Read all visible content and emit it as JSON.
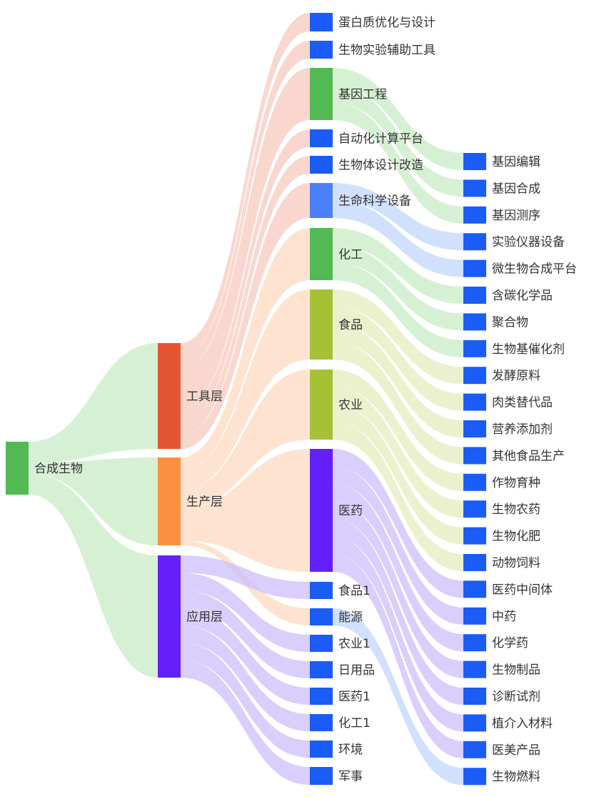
{
  "diagram_type": "sankey",
  "colors": {
    "blue": "#1a5cf5",
    "light_blue": "#4a80f8",
    "red": "#e35531",
    "orange": "#fb9140",
    "purple": "#6420fa",
    "green": "#52b954",
    "olive": "#a6c136",
    "link_green": "#c8ebc6",
    "link_red": "#f7c9bf",
    "link_orange": "#fdd9c0",
    "link_purple": "#cebefc",
    "link_blue": "#c2d5fb",
    "link_olive": "#e4ecbc"
  },
  "nodes": [
    {
      "id": "root",
      "label": "合成生物",
      "color": "green"
    },
    {
      "id": "tool",
      "label": "工具层",
      "color": "red"
    },
    {
      "id": "prod",
      "label": "生产层",
      "color": "orange"
    },
    {
      "id": "app",
      "label": "应用层",
      "color": "purple"
    },
    {
      "id": "t1",
      "label": "蛋白质优化与设计",
      "color": "blue"
    },
    {
      "id": "t2",
      "label": "生物实验辅助工具",
      "color": "blue"
    },
    {
      "id": "t3",
      "label": "基因工程",
      "color": "green"
    },
    {
      "id": "t4",
      "label": "自动化计算平台",
      "color": "blue"
    },
    {
      "id": "t5",
      "label": "生物体设计改造",
      "color": "blue"
    },
    {
      "id": "t6",
      "label": "生命科学设备",
      "color": "light_blue"
    },
    {
      "id": "p1",
      "label": "化工",
      "color": "green"
    },
    {
      "id": "p2",
      "label": "食品",
      "color": "olive"
    },
    {
      "id": "p3",
      "label": "农业",
      "color": "olive"
    },
    {
      "id": "p4",
      "label": "医药",
      "color": "purple"
    },
    {
      "id": "a1",
      "label": "食品1",
      "color": "blue"
    },
    {
      "id": "a2",
      "label": "能源",
      "color": "blue"
    },
    {
      "id": "a3",
      "label": "农业1",
      "color": "blue"
    },
    {
      "id": "a4",
      "label": "日用品",
      "color": "blue"
    },
    {
      "id": "a5",
      "label": "医药1",
      "color": "blue"
    },
    {
      "id": "a6",
      "label": "化工1",
      "color": "blue"
    },
    {
      "id": "a7",
      "label": "环境",
      "color": "blue"
    },
    {
      "id": "a8",
      "label": "军事",
      "color": "blue"
    },
    {
      "id": "l1",
      "label": "基因编辑",
      "color": "blue"
    },
    {
      "id": "l2",
      "label": "基因合成",
      "color": "blue"
    },
    {
      "id": "l3",
      "label": "基因测序",
      "color": "blue"
    },
    {
      "id": "l4",
      "label": "实验仪器设备",
      "color": "blue"
    },
    {
      "id": "l5",
      "label": "微生物合成平台",
      "color": "blue"
    },
    {
      "id": "l6",
      "label": "含碳化学品",
      "color": "blue"
    },
    {
      "id": "l7",
      "label": "聚合物",
      "color": "blue"
    },
    {
      "id": "l8",
      "label": "生物基催化剂",
      "color": "blue"
    },
    {
      "id": "l9",
      "label": "发酵原料",
      "color": "blue"
    },
    {
      "id": "l10",
      "label": "肉类替代品",
      "color": "blue"
    },
    {
      "id": "l11",
      "label": "营养添加剂",
      "color": "blue"
    },
    {
      "id": "l12",
      "label": "其他食品生产",
      "color": "blue"
    },
    {
      "id": "l13",
      "label": "作物育种",
      "color": "blue"
    },
    {
      "id": "l14",
      "label": "生物农药",
      "color": "blue"
    },
    {
      "id": "l15",
      "label": "生物化肥",
      "color": "blue"
    },
    {
      "id": "l16",
      "label": "动物饲料",
      "color": "blue"
    },
    {
      "id": "l17",
      "label": "医药中间体",
      "color": "blue"
    },
    {
      "id": "l18",
      "label": "中药",
      "color": "blue"
    },
    {
      "id": "l19",
      "label": "化学药",
      "color": "blue"
    },
    {
      "id": "l20",
      "label": "生物制品",
      "color": "blue"
    },
    {
      "id": "l21",
      "label": "诊断试剂",
      "color": "blue"
    },
    {
      "id": "l22",
      "label": "植介入材料",
      "color": "blue"
    },
    {
      "id": "l23",
      "label": "医美产品",
      "color": "blue"
    },
    {
      "id": "l24",
      "label": "生物燃料",
      "color": "blue"
    }
  ],
  "links": [
    {
      "source": "root",
      "target": "tool",
      "value": 8,
      "color": "link_green"
    },
    {
      "source": "root",
      "target": "prod",
      "value": 4,
      "color": "link_green"
    },
    {
      "source": "root",
      "target": "app",
      "value": 8,
      "color": "link_green"
    },
    {
      "source": "tool",
      "target": "t1",
      "value": 1,
      "color": "link_red"
    },
    {
      "source": "tool",
      "target": "t2",
      "value": 1,
      "color": "link_red"
    },
    {
      "source": "tool",
      "target": "t3",
      "value": 3,
      "color": "link_red"
    },
    {
      "source": "tool",
      "target": "t4",
      "value": 1,
      "color": "link_red"
    },
    {
      "source": "tool",
      "target": "t5",
      "value": 1,
      "color": "link_red"
    },
    {
      "source": "tool",
      "target": "t6",
      "value": 1,
      "color": "link_red"
    },
    {
      "source": "prod",
      "target": "p1",
      "value": 3,
      "color": "link_orange"
    },
    {
      "source": "prod",
      "target": "p2",
      "value": 4,
      "color": "link_orange"
    },
    {
      "source": "prod",
      "target": "p3",
      "value": 4,
      "color": "link_orange"
    },
    {
      "source": "prod",
      "target": "p4",
      "value": 7,
      "color": "link_orange"
    },
    {
      "source": "prod",
      "target": "a2",
      "value": 1,
      "color": "link_orange"
    },
    {
      "source": "app",
      "target": "a1",
      "value": 1,
      "color": "link_purple"
    },
    {
      "source": "app",
      "target": "a3",
      "value": 1,
      "color": "link_purple"
    },
    {
      "source": "app",
      "target": "a4",
      "value": 1,
      "color": "link_purple"
    },
    {
      "source": "app",
      "target": "a5",
      "value": 1,
      "color": "link_purple"
    },
    {
      "source": "app",
      "target": "a6",
      "value": 1,
      "color": "link_purple"
    },
    {
      "source": "app",
      "target": "a7",
      "value": 1,
      "color": "link_purple"
    },
    {
      "source": "app",
      "target": "a8",
      "value": 1,
      "color": "link_purple"
    },
    {
      "source": "t3",
      "target": "l1",
      "value": 1,
      "color": "link_green"
    },
    {
      "source": "t3",
      "target": "l2",
      "value": 1,
      "color": "link_green"
    },
    {
      "source": "t3",
      "target": "l3",
      "value": 1,
      "color": "link_green"
    },
    {
      "source": "t6",
      "target": "l4",
      "value": 1,
      "color": "link_blue"
    },
    {
      "source": "t6",
      "target": "l5",
      "value": 1,
      "color": "link_blue"
    },
    {
      "source": "p1",
      "target": "l6",
      "value": 1,
      "color": "link_green"
    },
    {
      "source": "p1",
      "target": "l7",
      "value": 1,
      "color": "link_green"
    },
    {
      "source": "p1",
      "target": "l8",
      "value": 1,
      "color": "link_green"
    },
    {
      "source": "p2",
      "target": "l9",
      "value": 1,
      "color": "link_olive"
    },
    {
      "source": "p2",
      "target": "l10",
      "value": 1,
      "color": "link_olive"
    },
    {
      "source": "p2",
      "target": "l11",
      "value": 1,
      "color": "link_olive"
    },
    {
      "source": "p2",
      "target": "l12",
      "value": 1,
      "color": "link_olive"
    },
    {
      "source": "p3",
      "target": "l13",
      "value": 1,
      "color": "link_olive"
    },
    {
      "source": "p3",
      "target": "l14",
      "value": 1,
      "color": "link_olive"
    },
    {
      "source": "p3",
      "target": "l15",
      "value": 1,
      "color": "link_olive"
    },
    {
      "source": "p3",
      "target": "l16",
      "value": 1,
      "color": "link_olive"
    },
    {
      "source": "p4",
      "target": "l17",
      "value": 1,
      "color": "link_purple"
    },
    {
      "source": "p4",
      "target": "l18",
      "value": 1,
      "color": "link_purple"
    },
    {
      "source": "p4",
      "target": "l19",
      "value": 1,
      "color": "link_purple"
    },
    {
      "source": "p4",
      "target": "l20",
      "value": 1,
      "color": "link_purple"
    },
    {
      "source": "p4",
      "target": "l21",
      "value": 1,
      "color": "link_purple"
    },
    {
      "source": "p4",
      "target": "l22",
      "value": 1,
      "color": "link_purple"
    },
    {
      "source": "p4",
      "target": "l23",
      "value": 1,
      "color": "link_purple"
    },
    {
      "source": "a2",
      "target": "l24",
      "value": 1,
      "color": "link_blue"
    }
  ]
}
